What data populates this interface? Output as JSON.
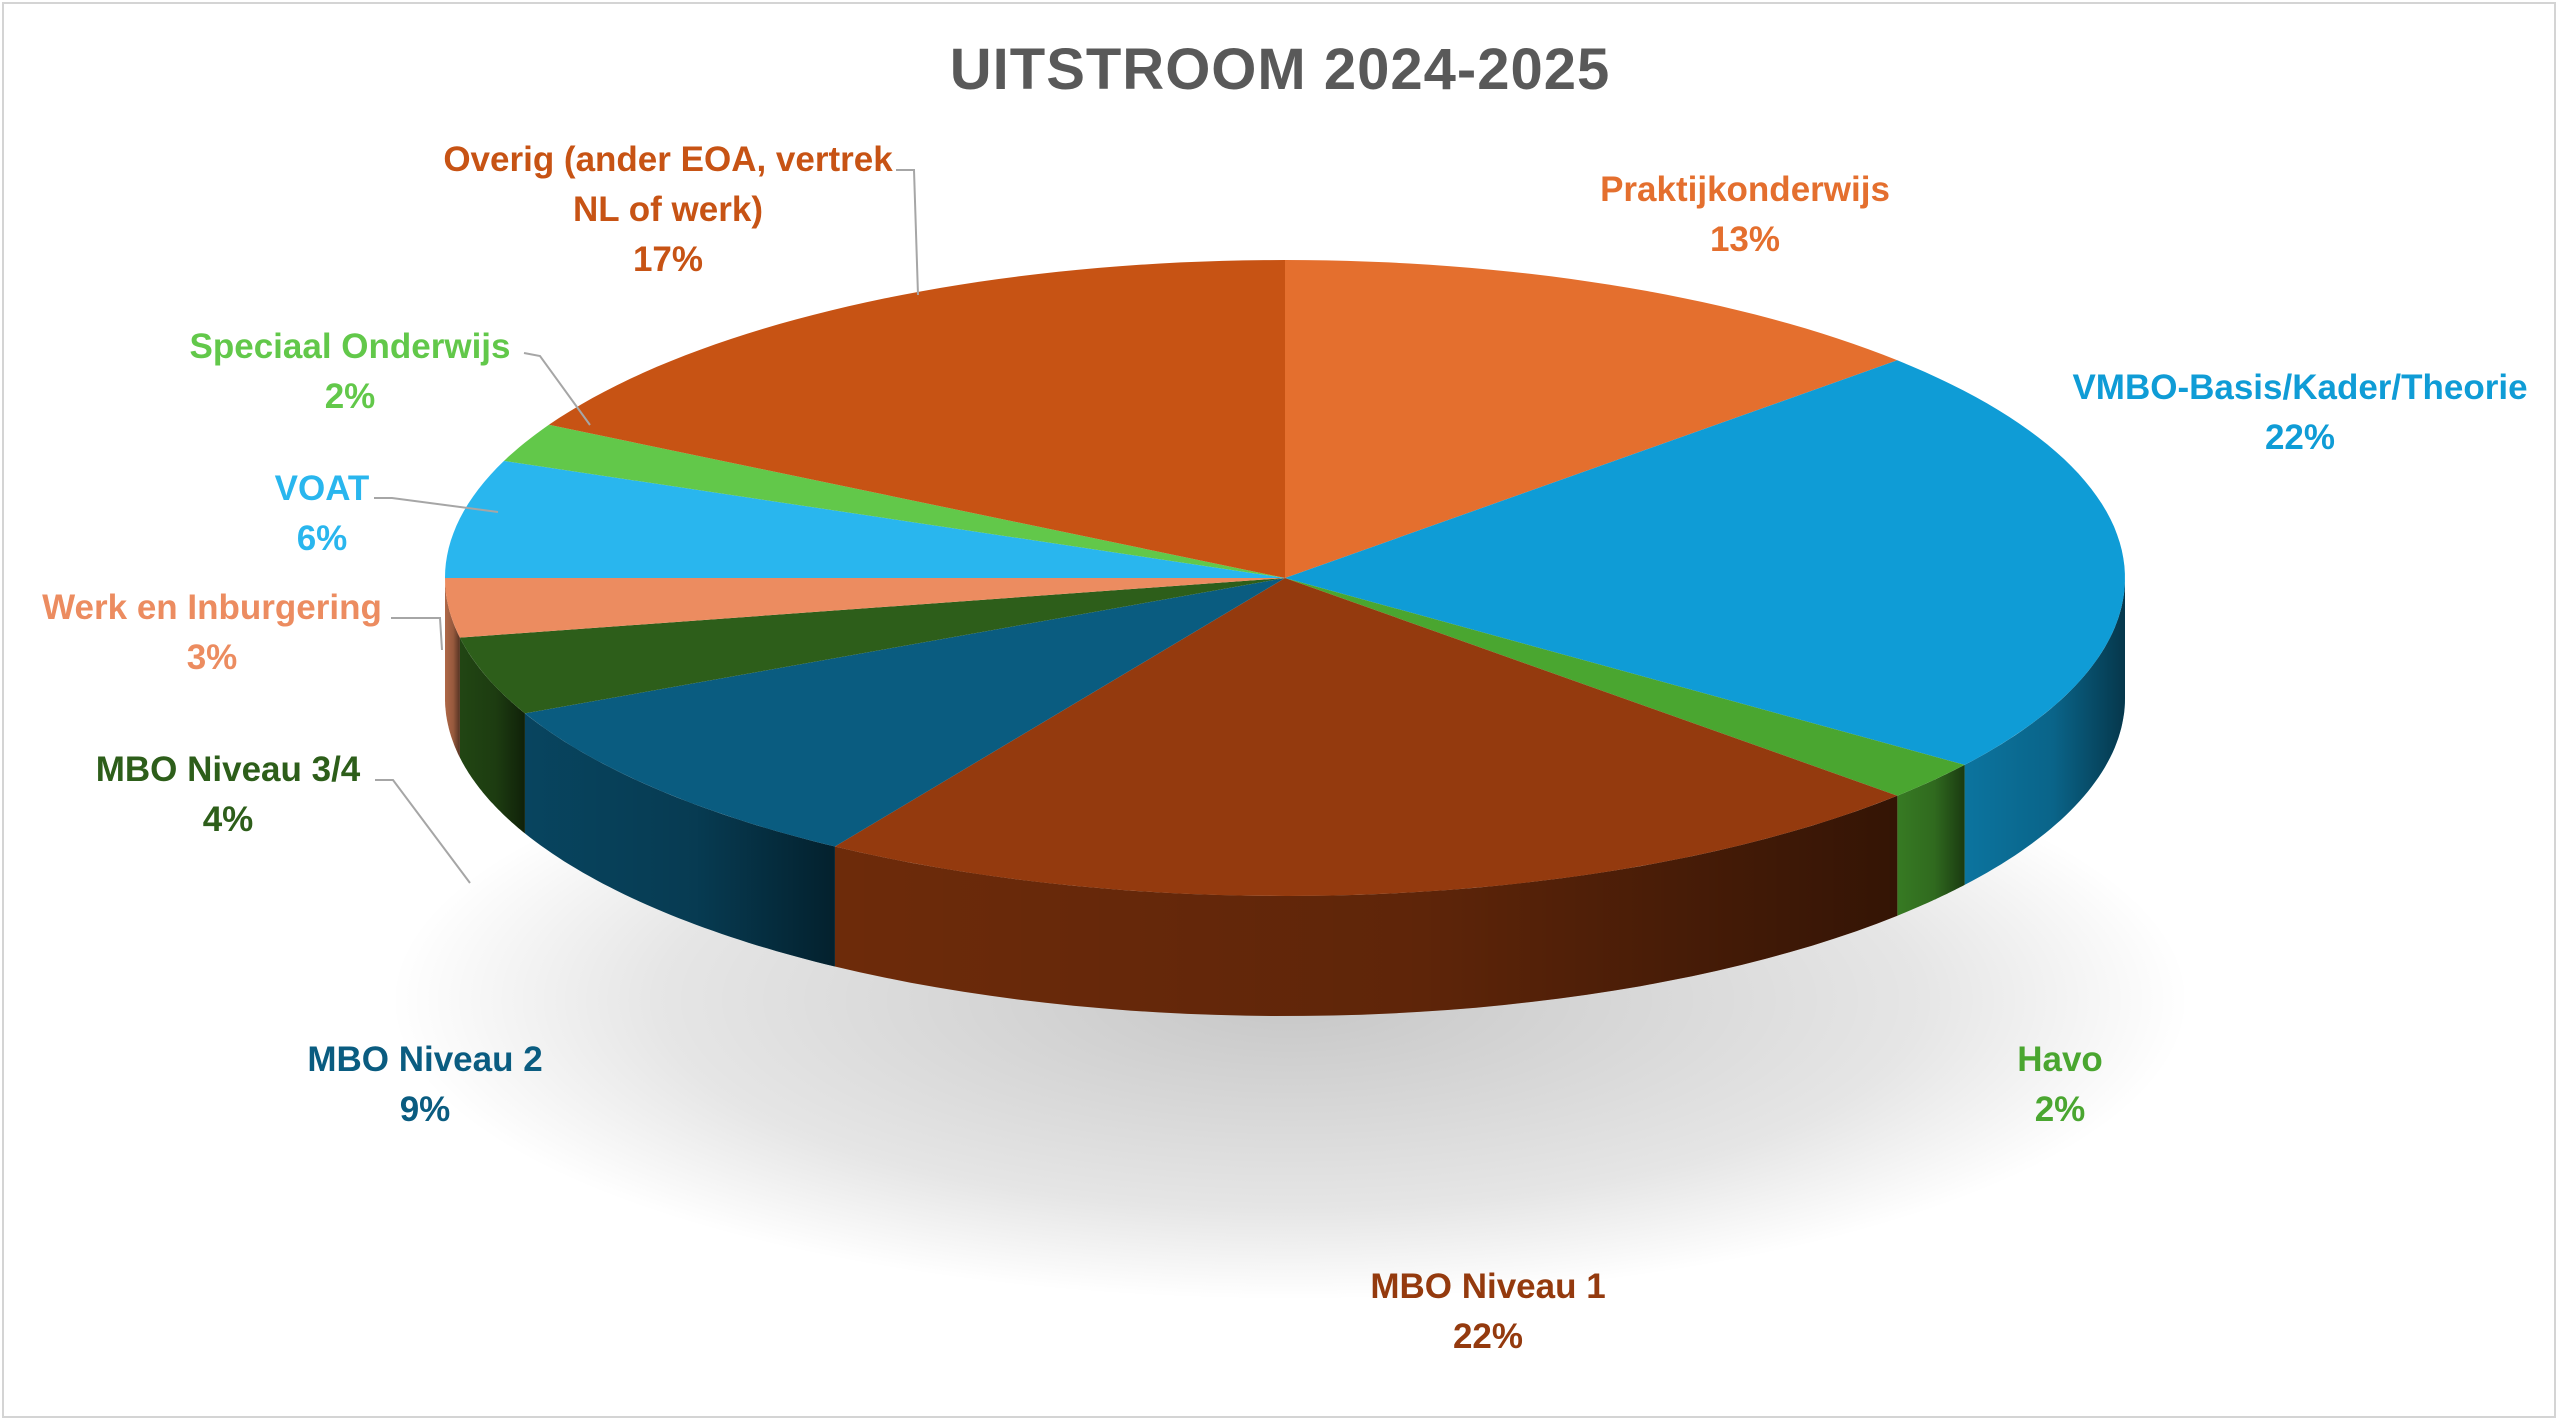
{
  "chart_data": {
    "type": "pie",
    "title": "UITSTROOM 2024-2025",
    "slices": [
      {
        "name": "Praktijkonderwijs",
        "value": 13,
        "label": "13%",
        "color": "#E46F2E"
      },
      {
        "name": "VMBO-Basis/Kader/Theorie",
        "value": 22,
        "label": "22%",
        "color": "#0F9CD6"
      },
      {
        "name": "Havo",
        "value": 2,
        "label": "2%",
        "color": "#4AA630"
      },
      {
        "name": "MBO Niveau 1",
        "value": 22,
        "label": "22%",
        "color": "#943A0E"
      },
      {
        "name": "MBO Niveau 2",
        "value": 9,
        "label": "9%",
        "color": "#0A5C80"
      },
      {
        "name": "MBO Niveau 3/4",
        "value": 4,
        "label": "4%",
        "color": "#2D5E1A"
      },
      {
        "name": "Werk en Inburgering",
        "value": 3,
        "label": "3%",
        "color": "#EC8C60"
      },
      {
        "name": "VOAT",
        "value": 6,
        "label": "6%",
        "color": "#29B6EE"
      },
      {
        "name": "Speciaal Onderwijs",
        "value": 2,
        "label": "2%",
        "color": "#62C84A"
      },
      {
        "name": "Overig (ander EOA, vertrek NL of werk)",
        "value": 17,
        "label": "17%",
        "color": "#C75314"
      }
    ],
    "label_lines": [
      [
        "Praktijkonderwijs",
        "13%"
      ],
      [
        "VMBO-Basis/Kader/Theorie",
        "22%"
      ],
      [
        "Havo",
        "2%"
      ],
      [
        "MBO Niveau 1",
        "22%"
      ],
      [
        "MBO Niveau 2",
        "9%"
      ],
      [
        "MBO Niveau 3/4",
        "4%"
      ],
      [
        "Werk en Inburgering",
        "3%"
      ],
      [
        "VOAT",
        "6%"
      ],
      [
        "Speciaal Onderwijs",
        "2%"
      ],
      [
        "Overig (ander EOA, vertrek",
        "NL of werk)",
        "17%"
      ]
    ],
    "label_colors": [
      "#E46F2E",
      "#0F9CD6",
      "#4AA630",
      "#943A0E",
      "#0A5C80",
      "#2D5E1A",
      "#EC8C60",
      "#29B6EE",
      "#62C84A",
      "#C75314"
    ]
  }
}
